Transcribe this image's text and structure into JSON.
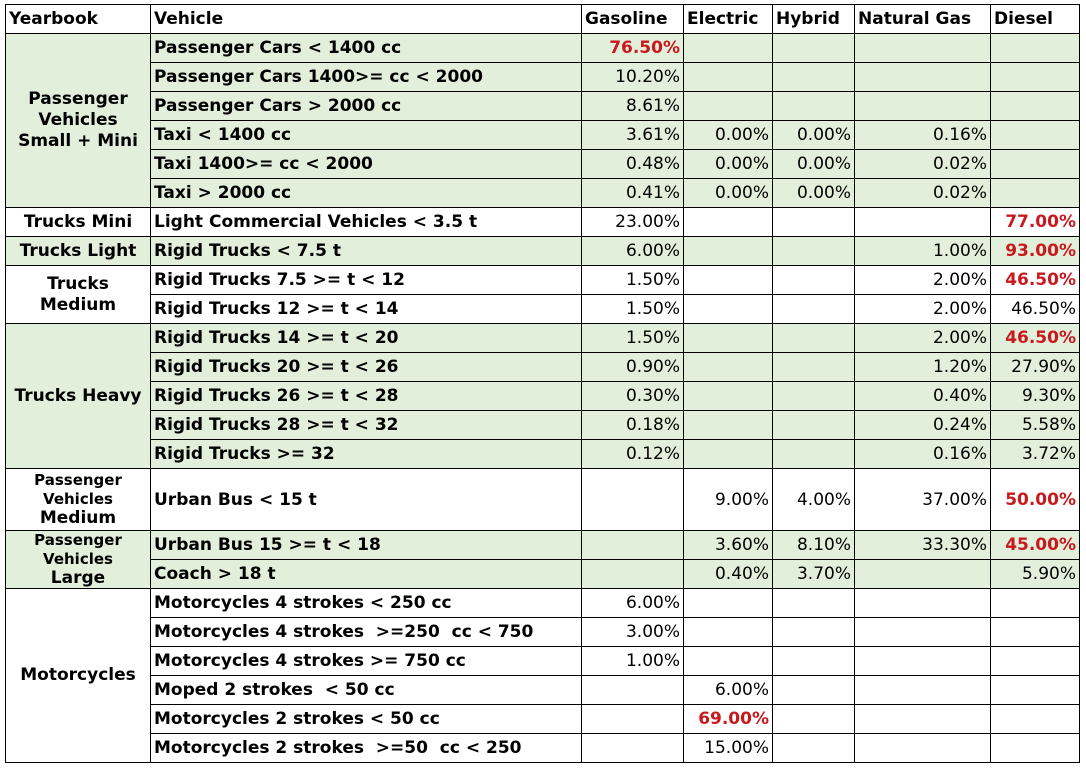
{
  "headers": [
    "Yearbook",
    "Vehicle",
    "Gasoline",
    "Electric",
    "Hybrid",
    "Natural Gas",
    "Diesel"
  ],
  "groups": [
    {
      "yearbook": "Passenger Vehicles Small + Mini",
      "yearbook_lines": [
        "Passenger",
        "Vehicles",
        "Small + Mini"
      ],
      "yb_small": false,
      "shade": "green",
      "rows": [
        {
          "vehicle": "Passenger Cars < 1400 cc",
          "values": [
            "76.50%",
            "",
            "",
            "",
            ""
          ],
          "highlight": [
            0
          ]
        },
        {
          "vehicle": "Passenger Cars 1400>= cc < 2000",
          "values": [
            "10.20%",
            "",
            "",
            "",
            ""
          ],
          "highlight": []
        },
        {
          "vehicle": "Passenger Cars > 2000 cc",
          "values": [
            "8.61%",
            "",
            "",
            "",
            ""
          ],
          "highlight": []
        },
        {
          "vehicle": "Taxi < 1400 cc",
          "values": [
            "3.61%",
            "0.00%",
            "0.00%",
            "0.16%",
            ""
          ],
          "highlight": []
        },
        {
          "vehicle": "Taxi 1400>= cc < 2000",
          "values": [
            "0.48%",
            "0.00%",
            "0.00%",
            "0.02%",
            ""
          ],
          "highlight": []
        },
        {
          "vehicle": "Taxi > 2000 cc",
          "values": [
            "0.41%",
            "0.00%",
            "0.00%",
            "0.02%",
            ""
          ],
          "highlight": []
        }
      ]
    },
    {
      "yearbook": "Trucks Mini",
      "yearbook_lines": [
        "Trucks Mini"
      ],
      "yb_small": false,
      "shade": "white",
      "rows": [
        {
          "vehicle": "Light Commercial Vehicles < 3.5 t",
          "values": [
            "23.00%",
            "",
            "",
            "",
            "77.00%"
          ],
          "highlight": [
            4
          ]
        }
      ]
    },
    {
      "yearbook": "Trucks Light",
      "yearbook_lines": [
        "Trucks Light"
      ],
      "yb_small": false,
      "shade": "green",
      "rows": [
        {
          "vehicle": "Rigid Trucks < 7.5 t",
          "values": [
            "6.00%",
            "",
            "",
            "1.00%",
            "93.00%"
          ],
          "highlight": [
            4
          ]
        }
      ]
    },
    {
      "yearbook": "Trucks Medium",
      "yearbook_lines": [
        "Trucks",
        "Medium"
      ],
      "yb_small": false,
      "shade": "white",
      "rows": [
        {
          "vehicle": "Rigid Trucks 7.5 >= t < 12",
          "values": [
            "1.50%",
            "",
            "",
            "2.00%",
            "46.50%"
          ],
          "highlight": [
            4
          ]
        },
        {
          "vehicle": "Rigid Trucks 12 >= t < 14",
          "values": [
            "1.50%",
            "",
            "",
            "2.00%",
            "46.50%"
          ],
          "highlight": []
        }
      ]
    },
    {
      "yearbook": "Trucks Heavy",
      "yearbook_lines": [
        "Trucks Heavy"
      ],
      "yb_small": false,
      "shade": "green",
      "rows": [
        {
          "vehicle": "Rigid Trucks 14 >= t < 20",
          "values": [
            "1.50%",
            "",
            "",
            "2.00%",
            "46.50%"
          ],
          "highlight": [
            4
          ]
        },
        {
          "vehicle": "Rigid Trucks 20 >= t < 26",
          "values": [
            "0.90%",
            "",
            "",
            "1.20%",
            "27.90%"
          ],
          "highlight": []
        },
        {
          "vehicle": "Rigid Trucks 26 >= t < 28",
          "values": [
            "0.30%",
            "",
            "",
            "0.40%",
            "9.30%"
          ],
          "highlight": []
        },
        {
          "vehicle": "Rigid Trucks 28 >= t < 32",
          "values": [
            "0.18%",
            "",
            "",
            "0.24%",
            "5.58%"
          ],
          "highlight": []
        },
        {
          "vehicle": "Rigid Trucks >= 32",
          "values": [
            "0.12%",
            "",
            "",
            "0.16%",
            "3.72%"
          ],
          "highlight": []
        }
      ]
    },
    {
      "yearbook": "Passenger Vehicles Medium",
      "yearbook_lines": [
        "Passenger",
        "Vehicles",
        "Medium"
      ],
      "yb_small": true,
      "shade": "white",
      "tall": true,
      "rows": [
        {
          "vehicle": "Urban Bus < 15 t",
          "values": [
            "",
            "9.00%",
            "4.00%",
            "37.00%",
            "50.00%"
          ],
          "highlight": [
            4
          ]
        }
      ]
    },
    {
      "yearbook": "Passenger Vehicles Large",
      "yearbook_lines": [
        "Passenger",
        "Vehicles",
        "Large"
      ],
      "yb_small": true,
      "shade": "green",
      "rows": [
        {
          "vehicle": "Urban Bus 15 >= t < 18",
          "values": [
            "",
            "3.60%",
            "8.10%",
            "33.30%",
            "45.00%"
          ],
          "highlight": [
            4
          ]
        },
        {
          "vehicle": "Coach > 18 t",
          "values": [
            "",
            "0.40%",
            "3.70%",
            "",
            "5.90%"
          ],
          "highlight": []
        }
      ]
    },
    {
      "yearbook": "Motorcycles",
      "yearbook_lines": [
        "Motorcycles"
      ],
      "yb_small": false,
      "shade": "white",
      "rows": [
        {
          "vehicle": "Motorcycles 4 strokes < 250 cc",
          "values": [
            "6.00%",
            "",
            "",
            "",
            ""
          ],
          "highlight": []
        },
        {
          "vehicle": "Motorcycles 4 strokes  >=250  cc < 750",
          "values": [
            "3.00%",
            "",
            "",
            "",
            ""
          ],
          "highlight": []
        },
        {
          "vehicle": "Motorcycles 4 strokes >= 750 cc",
          "values": [
            "1.00%",
            "",
            "",
            "",
            ""
          ],
          "highlight": []
        },
        {
          "vehicle": "Moped 2 strokes  < 50 cc",
          "values": [
            "",
            "6.00%",
            "",
            "",
            ""
          ],
          "highlight": []
        },
        {
          "vehicle": "Motorcycles 2 strokes < 50 cc",
          "values": [
            "",
            "69.00%",
            "",
            "",
            ""
          ],
          "highlight": [
            1
          ]
        },
        {
          "vehicle": "Motorcycles 2 strokes  >=50  cc < 250",
          "values": [
            "",
            "15.00%",
            "",
            "",
            ""
          ],
          "highlight": []
        }
      ]
    }
  ]
}
